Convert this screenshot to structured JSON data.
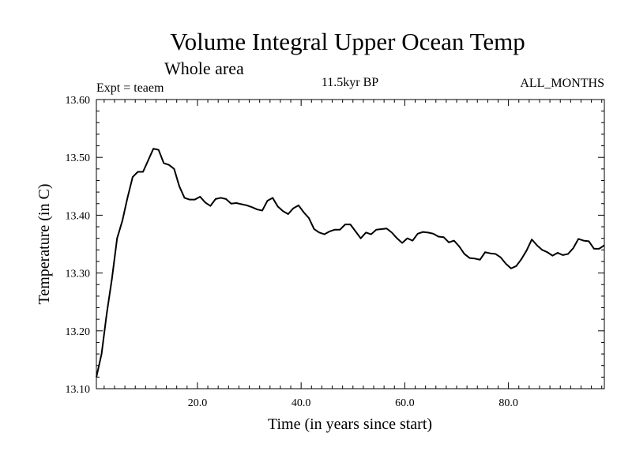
{
  "chart_data": {
    "type": "line",
    "title": "Volume Integral Upper Ocean Temp",
    "subtitle": "Whole area",
    "annotation_left": "Expt = teaem",
    "annotation_center": "11.5kyr BP",
    "annotation_right": "ALL_MONTHS",
    "xlabel": "Time (in years since start)",
    "ylabel": "Temperature (in C)",
    "xlim": [
      0.5,
      98.5
    ],
    "ylim": [
      13.1,
      13.6
    ],
    "xticks": [
      20,
      40,
      60,
      80
    ],
    "xtick_labels": [
      "20.0",
      "40.0",
      "60.0",
      "80.0"
    ],
    "yticks": [
      13.1,
      13.2,
      13.3,
      13.4,
      13.5,
      13.6
    ],
    "ytick_labels": [
      "13.10",
      "13.20",
      "13.30",
      "13.40",
      "13.50",
      "13.60"
    ],
    "grid": false,
    "series": [
      {
        "name": "Temperature",
        "x": [
          0.5,
          1.5,
          2.5,
          3.5,
          4.5,
          5.5,
          6.5,
          7.5,
          8.5,
          9.5,
          10.5,
          11.5,
          12.5,
          13.5,
          14.5,
          15.5,
          16.5,
          17.5,
          18.5,
          19.5,
          20.5,
          21.5,
          22.5,
          23.5,
          24.5,
          25.5,
          26.5,
          27.5,
          28.5,
          29.5,
          30.5,
          31.5,
          32.5,
          33.5,
          34.5,
          35.5,
          36.5,
          37.5,
          38.5,
          39.5,
          40.5,
          41.5,
          42.5,
          43.5,
          44.5,
          45.5,
          46.5,
          47.5,
          48.5,
          49.5,
          50.5,
          51.5,
          52.5,
          53.5,
          54.5,
          55.5,
          56.5,
          57.5,
          58.5,
          59.5,
          60.5,
          61.5,
          62.5,
          63.5,
          64.5,
          65.5,
          66.5,
          67.5,
          68.5,
          69.5,
          70.5,
          71.5,
          72.5,
          73.5,
          74.5,
          75.5,
          76.5,
          77.5,
          78.5,
          79.5,
          80.5,
          81.5,
          82.5,
          83.5,
          84.5,
          85.5,
          86.5,
          87.5,
          88.5,
          89.5,
          90.5,
          91.5,
          92.5,
          93.5,
          94.5,
          95.5,
          96.5,
          97.5,
          98.5
        ],
        "values": [
          13.12,
          13.16,
          13.23,
          13.29,
          13.36,
          13.39,
          13.43,
          13.466,
          13.475,
          13.475,
          13.495,
          13.515,
          13.513,
          13.49,
          13.487,
          13.48,
          13.45,
          13.43,
          13.427,
          13.427,
          13.432,
          13.422,
          13.416,
          13.428,
          13.43,
          13.428,
          13.42,
          13.421,
          13.419,
          13.417,
          13.414,
          13.41,
          13.408,
          13.425,
          13.43,
          13.415,
          13.407,
          13.402,
          13.412,
          13.417,
          13.405,
          13.395,
          13.376,
          13.37,
          13.367,
          13.372,
          13.375,
          13.375,
          13.384,
          13.384,
          13.372,
          13.36,
          13.37,
          13.367,
          13.375,
          13.376,
          13.377,
          13.37,
          13.36,
          13.352,
          13.36,
          13.356,
          13.368,
          13.371,
          13.37,
          13.368,
          13.363,
          13.362,
          13.353,
          13.356,
          13.346,
          13.333,
          13.326,
          13.325,
          13.323,
          13.336,
          13.334,
          13.333,
          13.327,
          13.316,
          13.308,
          13.312,
          13.324,
          13.339,
          13.358,
          13.348,
          13.34,
          13.336,
          13.33,
          13.335,
          13.331,
          13.333,
          13.343,
          13.359,
          13.356,
          13.355,
          13.342,
          13.342,
          13.348
        ]
      }
    ]
  }
}
